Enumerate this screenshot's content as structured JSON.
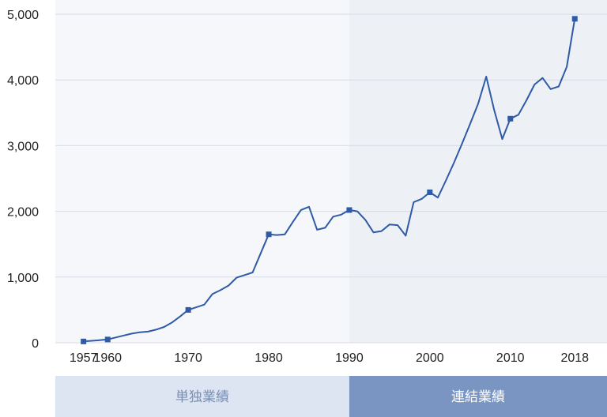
{
  "colors": {
    "line": "#2f5aa6",
    "marker": "#2f5aa6",
    "grid": "#d8dce6",
    "band_left": "#f5f7fb",
    "band_right": "#edf0f5",
    "bar_left": "#dde5f2",
    "bar_right": "#7a95c2",
    "bar_left_text": "#7a8eb3",
    "bar_right_text": "#ffffff"
  },
  "segments": [
    {
      "label": "単独業績",
      "from": 1953.5,
      "to": 1990
    },
    {
      "label": "連結業績",
      "from": 1990,
      "to": 2022
    }
  ],
  "chart_data": {
    "type": "line",
    "title": "",
    "xlabel": "",
    "ylabel": "",
    "xlim": [
      1953.5,
      2022
    ],
    "ylim": [
      0,
      5000
    ],
    "x_ticks": [
      1957,
      1960,
      1970,
      1980,
      1990,
      2000,
      2010,
      2018
    ],
    "x_tick_labels": [
      "1957",
      "1960",
      "1970",
      "1980",
      "1990",
      "2000",
      "2010",
      "2018"
    ],
    "y_ticks": [
      0,
      1000,
      2000,
      3000,
      4000,
      5000
    ],
    "y_tick_labels": [
      "0",
      "1,000",
      "2,000",
      "3,000",
      "4,000",
      "5,000"
    ],
    "grid": true,
    "series": [
      {
        "x": [
          1957,
          1958,
          1959,
          1960,
          1961,
          1962,
          1963,
          1964,
          1965,
          1966,
          1967,
          1968,
          1969,
          1970,
          1971,
          1972,
          1973,
          1974,
          1975,
          1976,
          1977,
          1978,
          1979,
          1980,
          1981,
          1982,
          1983,
          1984,
          1985,
          1986,
          1987,
          1988,
          1989,
          1990,
          1991,
          1992,
          1993,
          1994,
          1995,
          1996,
          1997,
          1998,
          1999,
          2000,
          2001,
          2002,
          2003,
          2004,
          2005,
          2006,
          2007,
          2008,
          2009,
          2010,
          2011,
          2012,
          2013,
          2014,
          2015,
          2016,
          2017,
          2018
        ],
        "y": [
          20,
          30,
          40,
          50,
          80,
          110,
          140,
          160,
          170,
          200,
          240,
          310,
          400,
          500,
          540,
          580,
          740,
          800,
          870,
          990,
          1030,
          1070,
          1360,
          1650,
          1640,
          1650,
          1840,
          2020,
          2070,
          1720,
          1750,
          1920,
          1950,
          2020,
          2000,
          1870,
          1680,
          1700,
          1800,
          1790,
          1630,
          2140,
          2190,
          2290,
          2210,
          2470,
          2740,
          3030,
          3330,
          3640,
          4050,
          3540,
          3100,
          3410,
          3470,
          3690,
          3930,
          4030,
          3860,
          3900,
          4200,
          4930
        ],
        "markers_at": [
          1957,
          1960,
          1970,
          1980,
          1990,
          2000,
          2010,
          2018
        ]
      }
    ]
  }
}
